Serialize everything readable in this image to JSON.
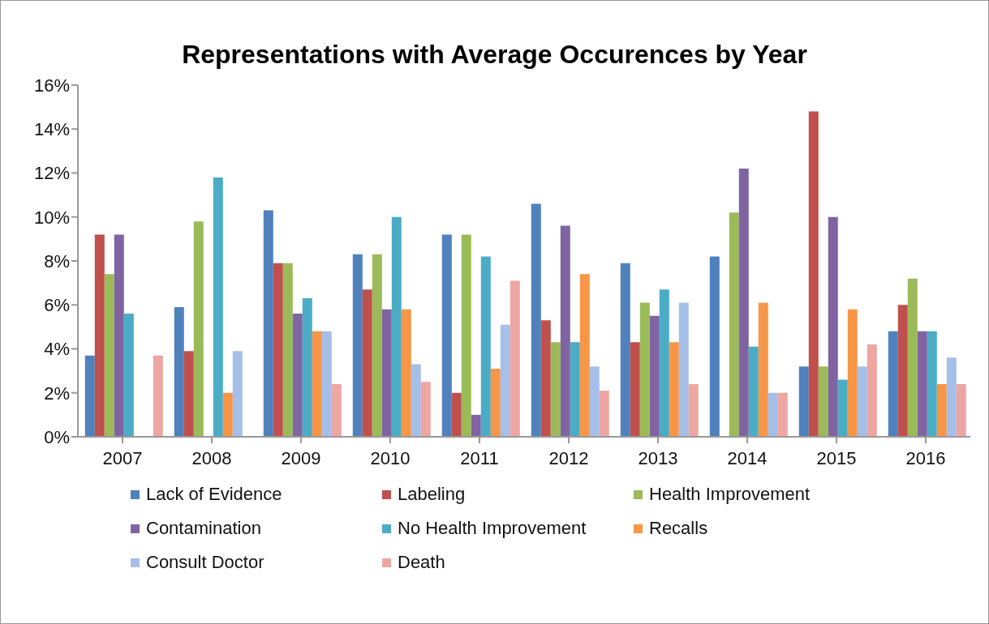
{
  "chart_data": {
    "type": "bar",
    "title": "Representations with Average Occurences by Year",
    "categories": [
      "2007",
      "2008",
      "2009",
      "2010",
      "2011",
      "2012",
      "2013",
      "2014",
      "2015",
      "2016"
    ],
    "series": [
      {
        "name": "Lack of Evidence",
        "color": "#4f81bd",
        "values": [
          3.7,
          5.9,
          10.3,
          8.3,
          9.2,
          10.6,
          7.9,
          8.2,
          3.2,
          4.8
        ]
      },
      {
        "name": "Labeling",
        "color": "#c0504d",
        "values": [
          9.2,
          3.9,
          7.9,
          6.7,
          2.0,
          5.3,
          4.3,
          0,
          14.8,
          6.0
        ]
      },
      {
        "name": "Health Improvement",
        "color": "#9bbb59",
        "values": [
          7.4,
          9.8,
          7.9,
          8.3,
          9.2,
          4.3,
          6.1,
          10.2,
          3.2,
          7.2
        ]
      },
      {
        "name": "Contamination",
        "color": "#8064a2",
        "values": [
          9.2,
          0,
          5.6,
          5.8,
          1.0,
          9.6,
          5.5,
          12.2,
          10.0,
          4.8
        ]
      },
      {
        "name": "No Health Improvement",
        "color": "#4bacc6",
        "values": [
          5.6,
          11.8,
          6.3,
          10.0,
          8.2,
          4.3,
          6.7,
          4.1,
          2.6,
          4.8
        ]
      },
      {
        "name": "Recalls",
        "color": "#f79646",
        "values": [
          0,
          2.0,
          4.8,
          5.8,
          3.1,
          7.4,
          4.3,
          6.1,
          5.8,
          2.4
        ]
      },
      {
        "name": "Consult Doctor",
        "color": "#a5bfe8",
        "values": [
          0,
          3.9,
          4.8,
          3.3,
          5.1,
          3.2,
          6.1,
          2.0,
          3.2,
          3.6
        ]
      },
      {
        "name": "Death",
        "color": "#eea6a3",
        "values": [
          3.7,
          0,
          2.4,
          2.5,
          7.1,
          2.1,
          2.4,
          2.0,
          4.2,
          2.4
        ]
      }
    ],
    "ylim": [
      0,
      16
    ],
    "yticks": [
      {
        "value": 0,
        "label": "0%"
      },
      {
        "value": 2,
        "label": "2%"
      },
      {
        "value": 4,
        "label": "4%"
      },
      {
        "value": 6,
        "label": "6%"
      },
      {
        "value": 8,
        "label": "8%"
      },
      {
        "value": 10,
        "label": "10%"
      },
      {
        "value": 12,
        "label": "12%"
      },
      {
        "value": 14,
        "label": "14%"
      },
      {
        "value": 16,
        "label": "16%"
      }
    ],
    "legend": "bottom"
  }
}
